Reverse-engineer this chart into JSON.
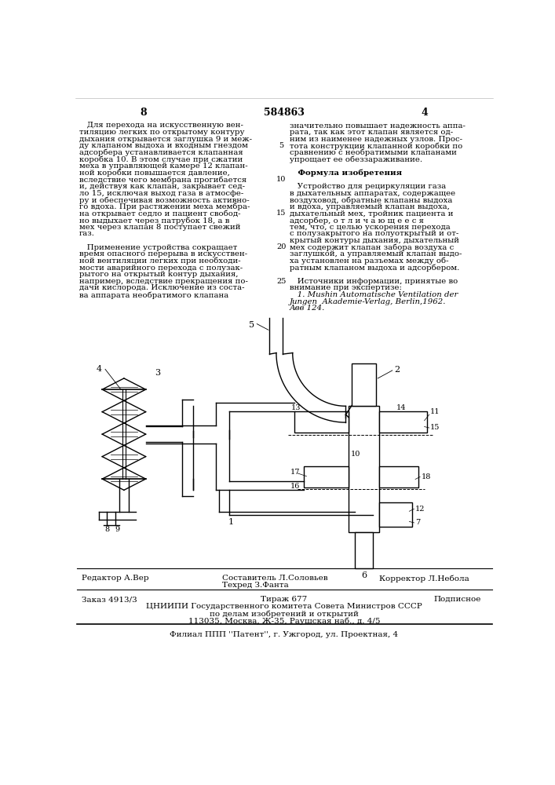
{
  "page_bg": "#ffffff",
  "text_color": "#000000",
  "page_number_left": "8",
  "page_number_center": "584863",
  "page_number_right": "4",
  "left_column_lines": [
    "   Для перехода на искусственную вен-",
    "тиляцию легких по открытому контуру",
    "дыхания открывается заглушка 9 и меж-",
    "ду клапаном выдоха и входным гнездом",
    "адсорбера устанавливается клапанная",
    "коробка 10. В этом случае при сжатии",
    "меха в управляющей камере 12 клапан-",
    "ной коробки повышается давление,",
    "вследствие чего мембрана прогибается",
    "и, действуя как клапан, закрывает сед-",
    "ло 15, исключая выход газа в атмосфе-",
    "ру и обеспечивая возможность активно-",
    "го вдоха. При растяжении меха мембра-",
    "на открывает седло и пациент свобод-",
    "но выдыхает через патрубок 18, а в",
    "мех через клапан 8 поступает свежий",
    "газ.",
    "",
    "   Применение устройства сокращает",
    "время опасного перерыва в искусствен-",
    "ной вентиляции легких при необходи-",
    "мости аварийного перехода с полузак-",
    "рытого на открытый контур дыхания,",
    "например, вследствие прекращения по-",
    "дачи кислорода. Исключение из соста-",
    "ва аппарата необратимого клапана"
  ],
  "right_column_lines": [
    "значительно повышает надежность аппа-",
    "рата, так как этот клапан является од-",
    "ним из наименее надежных узлов. Прос-",
    "тота конструкции клапанной коробки по",
    "сравнению с необратимыми клапанами",
    "упрощает ее обеззараживание.",
    "",
    "   Формула изобретения",
    "",
    "   Устройство для рециркуляции газа",
    "в дыхательных аппаратах, содержащее",
    "воздуховод, обратные клапаны выдоха",
    "и вдоха, управляемый клапан выдоха,",
    "дыхательный мех, тройник пациента и",
    "адсорбер, о т л и ч а ю щ е е с я",
    "тем, что, с целью ускорения перехода",
    "с полузакрытого на полуоткрытый и от-",
    "крытый контуры дыхания, дыхательный",
    "мех содержит клапан забора воздуха с",
    "заглушкой, а управляемый клапан выдо-",
    "ха установлен на разъемах между об-",
    "ратным клапаном выдоха и адсорбером.",
    "",
    "   Источники информации, принятые во",
    "внимание при экспертизе:",
    "   1. Mushin Automatische Ventilation der",
    "Jungen  Akademie-Verlag, Berlin,1962.",
    "Авв 124."
  ],
  "line_numbers": [
    "5",
    "10",
    "15",
    "20",
    "25"
  ],
  "line_number_y_offsets": [
    4,
    9,
    14,
    19,
    24
  ],
  "editor_line": "Редактор А.Вер",
  "compiler_line": "Составитель Л.Соловьев",
  "techred_line": "Техред З.Фанта",
  "corrector_line": "Корректор Л.Небола",
  "order_line": "Заказ 4913/3",
  "tirazh_line": "Тираж 677",
  "podpisno_line": "Подписное",
  "tsniipи_line": "ЦНИИПИ Государственного комитета Совета Министров СССР",
  "po_delam_line": "по делам изобретений и открытий",
  "address_line": "113035, Москва, Ж-35, Раушская наб., д. 4/5",
  "filial_line": "Филиал ППП ''Патент'', г. Ужгород, ул. Проектная, 4"
}
